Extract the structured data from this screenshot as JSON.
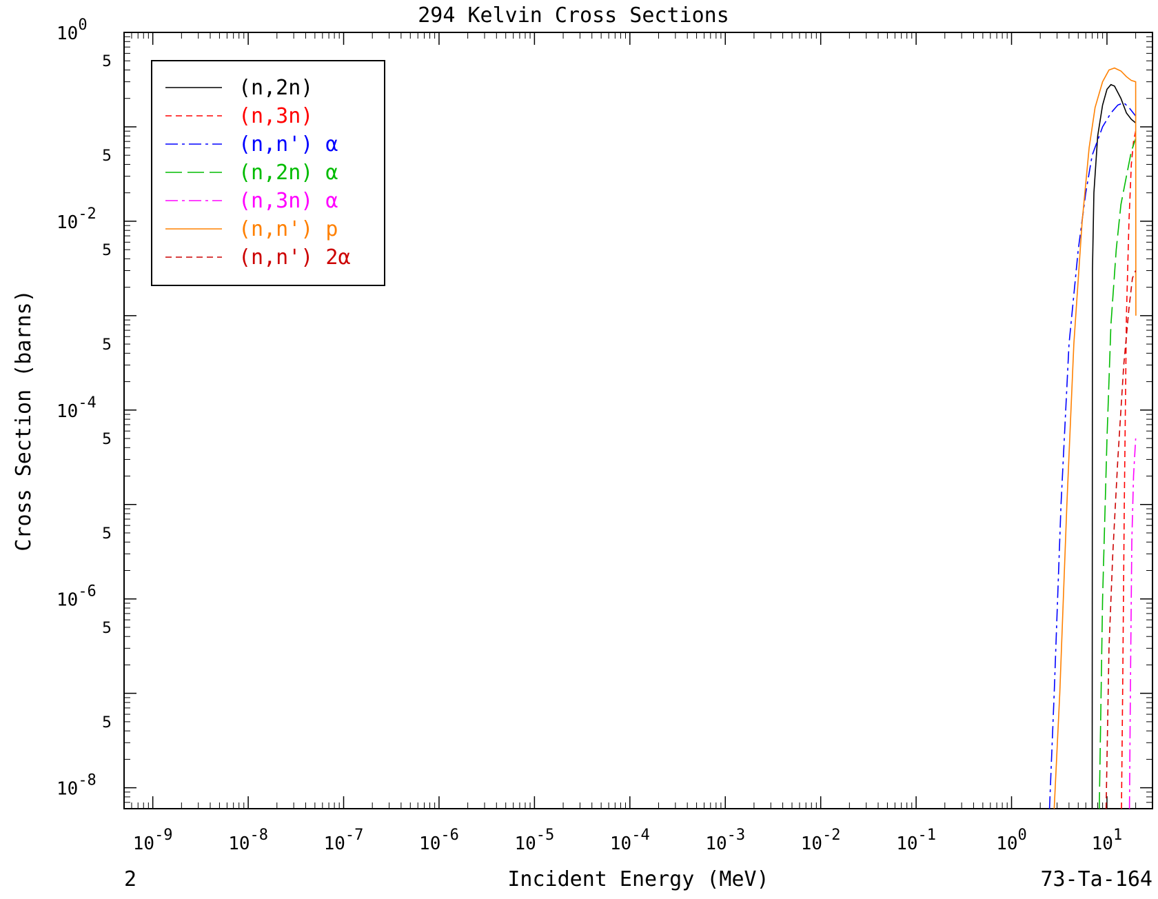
{
  "chart_data": {
    "type": "line",
    "title": "294 Kelvin Cross Sections",
    "xlabel": "Incident Energy (MeV)",
    "ylabel": "Cross Section (barns)",
    "x_scale": "log",
    "y_scale": "log",
    "xlim": [
      5e-10,
      30
    ],
    "ylim": [
      6e-09,
      1
    ],
    "x_ticks": [
      {
        "base": "10",
        "exp": "-9"
      },
      {
        "base": "10",
        "exp": "-8"
      },
      {
        "base": "10",
        "exp": "-7"
      },
      {
        "base": "10",
        "exp": "-6"
      },
      {
        "base": "10",
        "exp": "-5"
      },
      {
        "base": "10",
        "exp": "-4"
      },
      {
        "base": "10",
        "exp": "-3"
      },
      {
        "base": "10",
        "exp": "-2"
      },
      {
        "base": "10",
        "exp": "-1"
      },
      {
        "base": "10",
        "exp": "0"
      },
      {
        "base": "10",
        "exp": "1"
      }
    ],
    "y_ticks": [
      {
        "base": "10",
        "exp": "0"
      },
      {
        "base": "10",
        "exp": "-2"
      },
      {
        "base": "10",
        "exp": "-4"
      },
      {
        "base": "10",
        "exp": "-6"
      },
      {
        "base": "10",
        "exp": "-8"
      }
    ],
    "y_minor_label": "5",
    "corner_left": "2",
    "corner_right": "73-Ta-164",
    "grid": false,
    "legend_position": "top-left",
    "series": [
      {
        "name": "(n,2n)",
        "color": "#000000",
        "dash": "solid",
        "points": [
          [
            7.0,
            6e-09
          ],
          [
            7.05,
            0.003
          ],
          [
            7.3,
            0.02
          ],
          [
            8,
            0.08
          ],
          [
            9,
            0.17
          ],
          [
            10,
            0.25
          ],
          [
            11,
            0.28
          ],
          [
            12,
            0.27
          ],
          [
            14,
            0.2
          ],
          [
            16,
            0.14
          ],
          [
            18,
            0.12
          ],
          [
            20,
            0.11
          ]
        ]
      },
      {
        "name": "(n,3n)",
        "color": "#ff0000",
        "dash": "dashed",
        "points": [
          [
            14.2,
            6e-09
          ],
          [
            14.6,
            1e-07
          ],
          [
            15.2,
            1e-05
          ],
          [
            16,
            0.001
          ],
          [
            17,
            0.01
          ],
          [
            18,
            0.04
          ],
          [
            19,
            0.07
          ],
          [
            20,
            0.09
          ]
        ]
      },
      {
        "name": "(n,n') α",
        "color": "#0000ff",
        "dash": "dashdot",
        "points": [
          [
            2.5,
            6e-09
          ],
          [
            2.8,
            1e-07
          ],
          [
            3.3,
            1e-05
          ],
          [
            4,
            0.0005
          ],
          [
            5,
            0.005
          ],
          [
            6,
            0.02
          ],
          [
            7,
            0.05
          ],
          [
            9,
            0.1
          ],
          [
            11,
            0.14
          ],
          [
            13,
            0.17
          ],
          [
            15,
            0.18
          ],
          [
            17,
            0.16
          ],
          [
            20,
            0.13
          ]
        ]
      },
      {
        "name": "(n,2n) α",
        "color": "#00bb00",
        "dash": "longdash",
        "points": [
          [
            8.3,
            6e-09
          ],
          [
            9,
            1e-06
          ],
          [
            10,
            5e-05
          ],
          [
            11,
            0.0008
          ],
          [
            12.5,
            0.005
          ],
          [
            14,
            0.015
          ],
          [
            16,
            0.03
          ],
          [
            18,
            0.055
          ],
          [
            20,
            0.075
          ]
        ]
      },
      {
        "name": "(n,3n) α",
        "color": "#ff00ff",
        "dash": "dashdot",
        "points": [
          [
            17.2,
            6e-09
          ],
          [
            17.6,
            1e-07
          ],
          [
            18.2,
            4e-06
          ],
          [
            19,
            2e-05
          ],
          [
            20,
            5e-05
          ]
        ]
      },
      {
        "name": "(n,n') p",
        "color": "#ff8000",
        "dash": "solid",
        "points": [
          [
            2.8,
            6e-09
          ],
          [
            3.2,
            1e-07
          ],
          [
            3.8,
            1e-05
          ],
          [
            4.5,
            0.0005
          ],
          [
            5.5,
            0.01
          ],
          [
            6.5,
            0.06
          ],
          [
            7.5,
            0.16
          ],
          [
            9,
            0.3
          ],
          [
            10.5,
            0.4
          ],
          [
            12,
            0.42
          ],
          [
            14,
            0.39
          ],
          [
            16,
            0.34
          ],
          [
            18,
            0.31
          ],
          [
            20,
            0.3
          ],
          [
            20.1,
            0.001
          ]
        ]
      },
      {
        "name": "(n,n') 2α",
        "color": "#cc0000",
        "dash": "dashed",
        "points": [
          [
            9.8,
            6e-09
          ],
          [
            10.5,
            3e-07
          ],
          [
            11.5,
            3e-06
          ],
          [
            13,
            3e-05
          ],
          [
            15,
            0.0003
          ],
          [
            17,
            0.0012
          ],
          [
            18.5,
            0.0025
          ],
          [
            20,
            0.003
          ]
        ]
      }
    ]
  }
}
